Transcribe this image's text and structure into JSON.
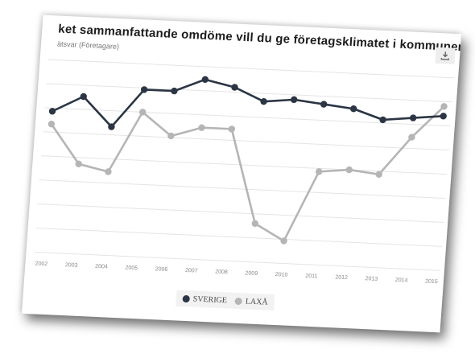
{
  "chart_data": {
    "type": "line",
    "title": "ket sammanfattande omdöme vill du ge företagsklimatet i kommunen",
    "subtitle": "ätsvar (Företagare)",
    "x": [
      "2002",
      "2003",
      "2004",
      "2005",
      "2006",
      "2007",
      "2008",
      "2009",
      "2010",
      "2011",
      "2012",
      "2013",
      "2014",
      "2015"
    ],
    "series": [
      {
        "name": "SVERIGE",
        "color": "#2b3544",
        "values": [
          3.2,
          3.45,
          3.0,
          3.6,
          3.6,
          3.8,
          3.7,
          3.5,
          3.55,
          3.5,
          3.45,
          3.3,
          3.35,
          3.4
        ]
      },
      {
        "name": "LAXÅ",
        "color": "#b5b5b5",
        "values": [
          3.0,
          2.4,
          2.3,
          3.25,
          2.9,
          3.05,
          3.05,
          1.6,
          1.35,
          2.45,
          2.5,
          2.45,
          3.05,
          3.55
        ]
      }
    ],
    "ylim": [
      1,
      4
    ],
    "grid": true,
    "legend_position": "bottom-center"
  },
  "icons": {
    "download": "download-icon"
  }
}
